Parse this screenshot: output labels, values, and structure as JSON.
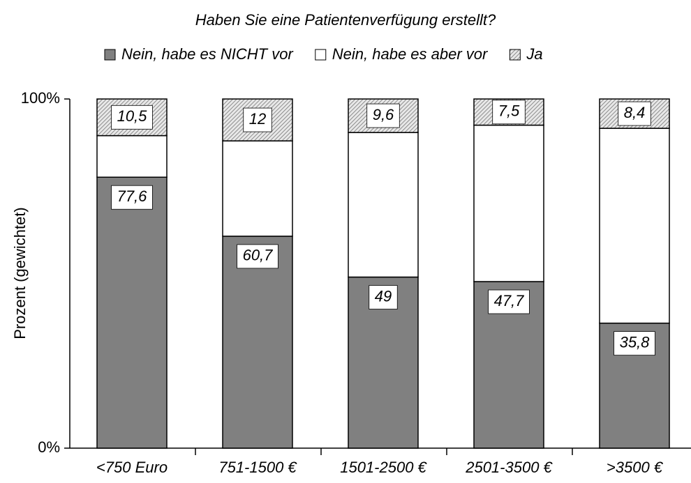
{
  "chart_data": {
    "type": "stacked-bar",
    "title": "Haben Sie eine Patientenverfügung erstellt?",
    "y_label": "Prozent (gewichtet)",
    "categories": [
      "<750 Euro",
      "751-1500 €",
      "1501-2500 €",
      "2501-3500 €",
      ">3500 €"
    ],
    "series": [
      {
        "name": "Nein, habe es NICHT vor",
        "color": "#808080",
        "values": [
          77.6,
          60.7,
          49,
          47.7,
          35.8
        ],
        "value_labels": [
          "77,6",
          "60,7",
          "49",
          "47,7",
          "35,8"
        ]
      },
      {
        "name": "Nein, habe es aber vor",
        "color": "#ffffff",
        "values": [
          11.9,
          27.3,
          41.4,
          44.8,
          55.8
        ]
      },
      {
        "name": "Ja",
        "color": "hatch",
        "values": [
          10.5,
          12,
          9.6,
          7.5,
          8.4
        ],
        "value_labels": [
          "10,5",
          "12",
          "9,6",
          "7,5",
          "8,4"
        ]
      }
    ],
    "ylim": [
      0,
      100
    ],
    "yticks": [
      {
        "value": 0,
        "label": "0%"
      },
      {
        "value": 100,
        "label": "100%"
      }
    ],
    "legend": "top"
  }
}
